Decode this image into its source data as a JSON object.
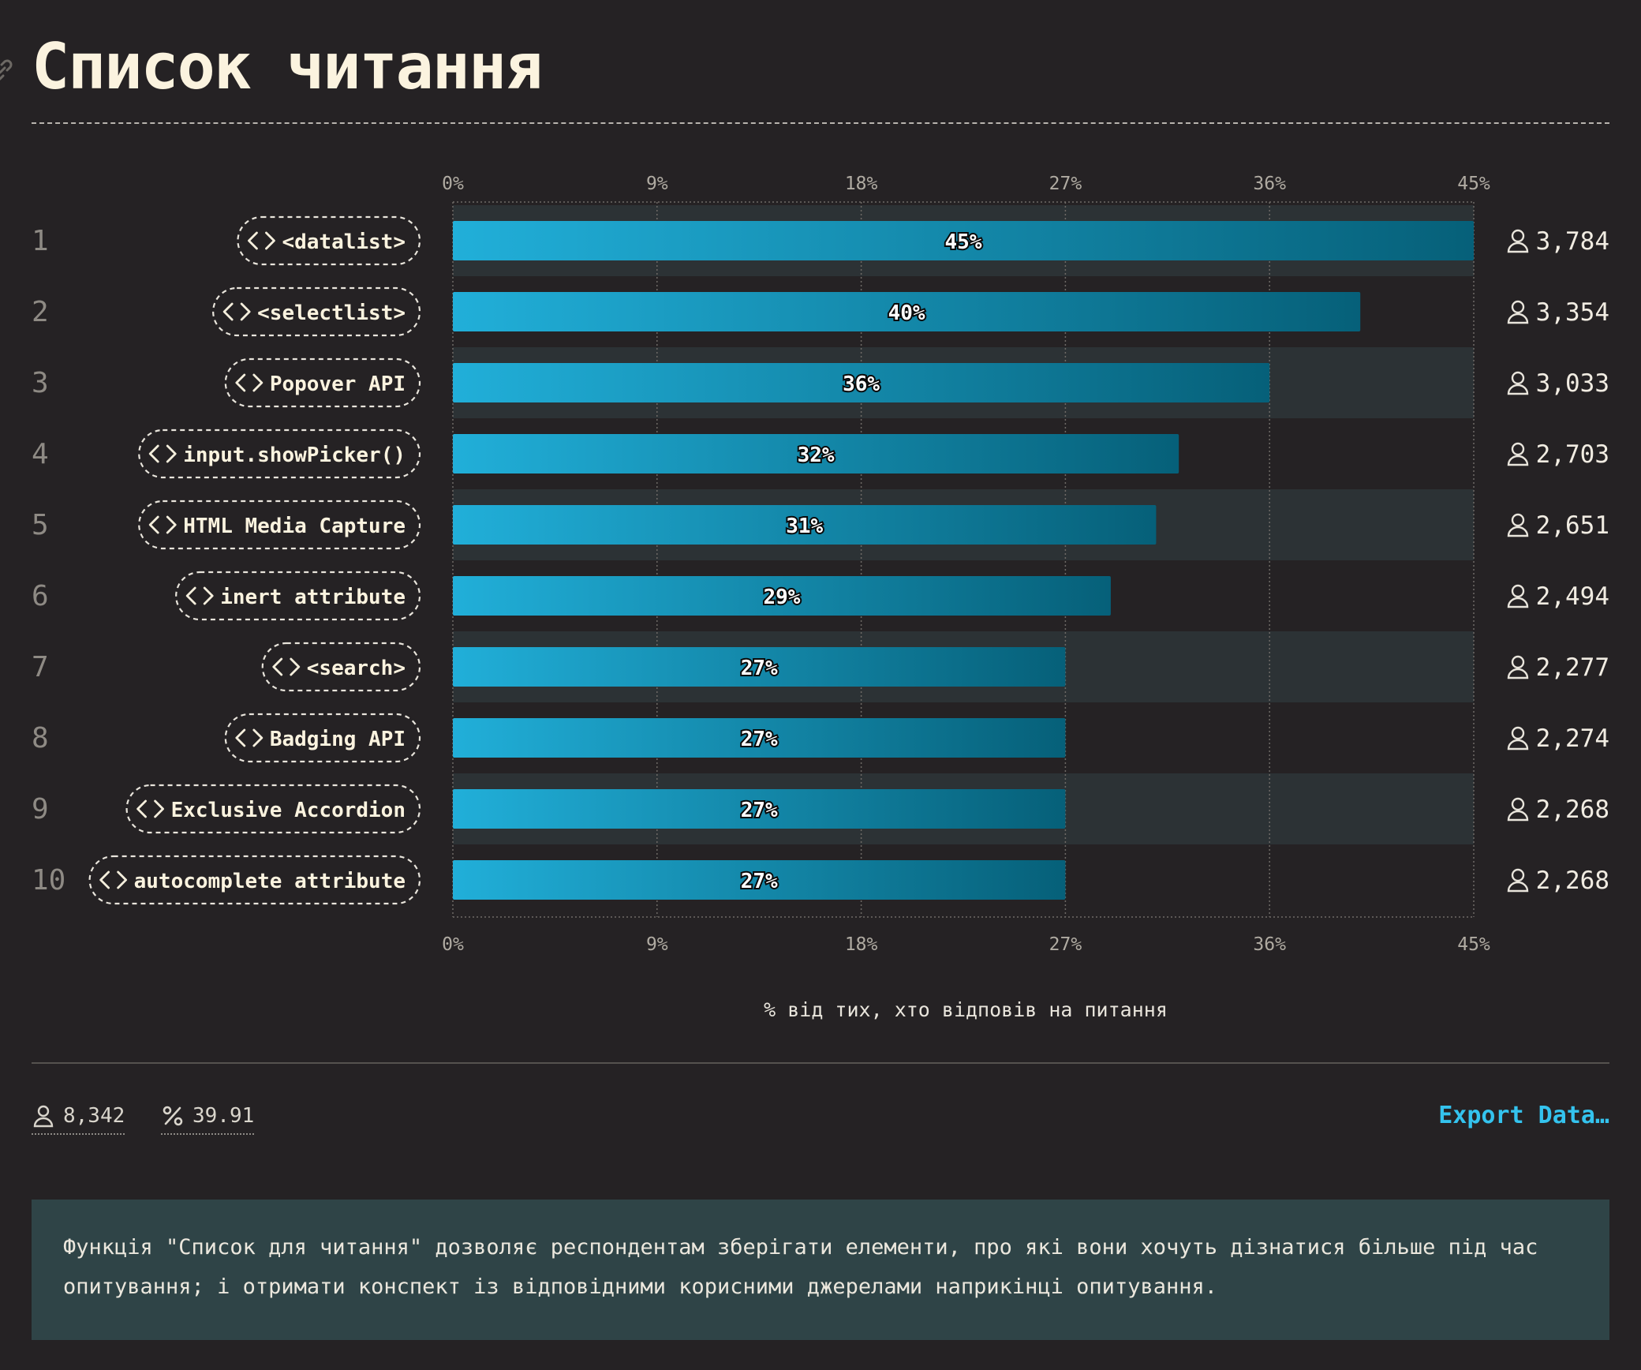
{
  "page": {
    "title": "Список читання"
  },
  "chart_data": {
    "type": "bar",
    "orientation": "horizontal",
    "title": "",
    "xlabel": "% від тих, хто відповів на питання",
    "ylabel": "",
    "xlim": [
      0,
      45
    ],
    "x_ticks": [
      "0%",
      "9%",
      "18%",
      "27%",
      "36%",
      "45%"
    ],
    "grid": true,
    "ranks": [
      "1",
      "2",
      "3",
      "4",
      "5",
      "6",
      "7",
      "8",
      "9",
      "10"
    ],
    "categories": [
      "<datalist>",
      "<selectlist>",
      "Popover API",
      "input.showPicker()",
      "HTML Media Capture",
      "inert attribute",
      "<search>",
      "Badging API",
      "Exclusive Accordion",
      "autocomplete attribute"
    ],
    "values": [
      45,
      40,
      36,
      32,
      31,
      29,
      27,
      27,
      27,
      27
    ],
    "value_labels": [
      "45%",
      "40%",
      "36%",
      "32%",
      "31%",
      "29%",
      "27%",
      "27%",
      "27%",
      "27%"
    ],
    "counts": [
      "3,784",
      "3,354",
      "3,033",
      "2,703",
      "2,651",
      "2,494",
      "2,277",
      "2,274",
      "2,268",
      "2,268"
    ],
    "category_icon": "code-brackets-icon",
    "count_icon": "user-icon",
    "colors": {
      "bar_start": "#21afd9",
      "bar_end": "#066079",
      "row_highlight": "#2c3235",
      "tick_text": "#b0aba2",
      "label_text": "#fbf3df"
    }
  },
  "footer": {
    "respondents": "8,342",
    "respondents_icon": "user-icon",
    "percent": "39.91",
    "percent_icon": "percent-icon",
    "export_label": "Export Data…"
  },
  "note": {
    "text": "Функція \"Список для читання\" дозволяє респондентам зберігати елементи, про які вони хочуть дізнатися більше під час опитування; і отримати конспект із відповідними корисними джерелами наприкінці опитування."
  }
}
